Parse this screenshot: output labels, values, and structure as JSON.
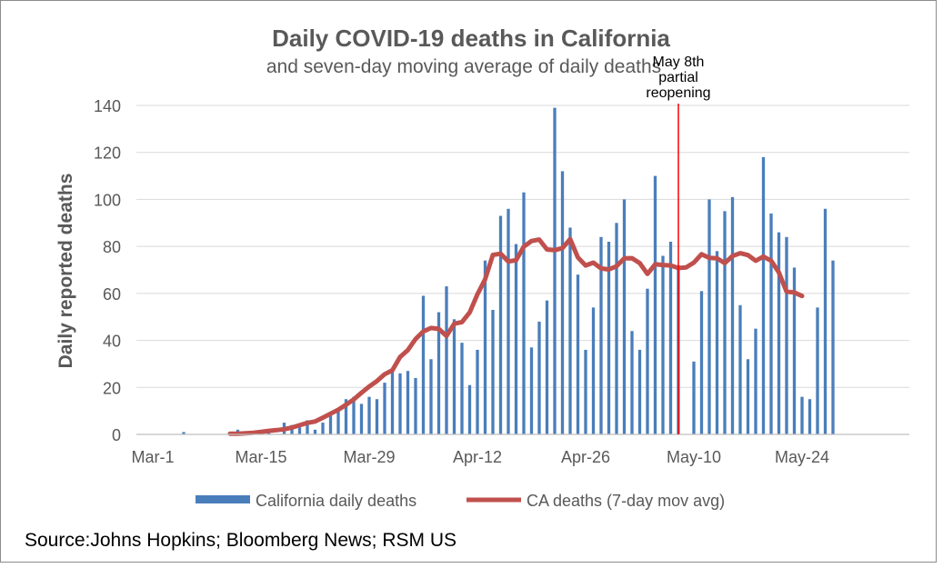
{
  "chart_data": {
    "type": "bar",
    "title": "Daily COVID-19 deaths in California",
    "subtitle": "and seven-day moving average of daily deaths",
    "ylabel": "Daily reported deaths",
    "xlabel": "",
    "ylim": [
      0,
      140
    ],
    "yticks": [
      0,
      20,
      40,
      60,
      80,
      100,
      120,
      140
    ],
    "grid": true,
    "x_start": "Mar-1",
    "xtick_labels": [
      "Mar-1",
      "Mar-15",
      "Mar-29",
      "Apr-12",
      "Apr-26",
      "May-10",
      "May-24"
    ],
    "xtick_index": [
      0,
      14,
      28,
      42,
      56,
      70,
      84
    ],
    "series": [
      {
        "name": "California daily deaths",
        "kind": "bar",
        "color": "#4a7ebb",
        "values": [
          0,
          0,
          0,
          0,
          1,
          0,
          0,
          0,
          0,
          0,
          1,
          2,
          0,
          0,
          1,
          1,
          0,
          5,
          4,
          3,
          6,
          2,
          5,
          9,
          11,
          15,
          16,
          13,
          16,
          15,
          22,
          27,
          26,
          27,
          24,
          59,
          32,
          52,
          63,
          49,
          39,
          21,
          36,
          74,
          53,
          93,
          96,
          81,
          103,
          37,
          48,
          57,
          139,
          112,
          88,
          68,
          36,
          54,
          84,
          82,
          90,
          100,
          44,
          36,
          62,
          110,
          76,
          82,
          72,
          0,
          31,
          61,
          100,
          78,
          95,
          101,
          55,
          32,
          45,
          118,
          94,
          86,
          84,
          71,
          16,
          15,
          54,
          96,
          74
        ]
      },
      {
        "name": "CA deaths (7-day mov avg)",
        "kind": "line",
        "color": "#c0504d",
        "start_index": 10,
        "values": [
          0.3,
          0.3,
          0.5,
          0.7,
          1.1,
          1.5,
          1.8,
          2.2,
          2.9,
          3.9,
          4.9,
          5.5,
          7.1,
          8.8,
          10.5,
          12.6,
          14.9,
          17.7,
          20.4,
          22.7,
          25.6,
          27.3,
          33.0,
          35.9,
          40.6,
          43.8,
          45.3,
          44.9,
          41.9,
          47.1,
          47.8,
          51.9,
          59.6,
          66.0,
          76.4,
          76.9,
          73.6,
          74.1,
          79.9,
          82.3,
          82.9,
          78.7,
          78.4,
          79.3,
          83.1,
          75.3,
          71.9,
          73.1,
          70.6,
          70.2,
          71.6,
          74.9,
          75.0,
          72.9,
          68.3,
          72.4,
          72.1,
          71.9,
          70.8,
          71.1,
          73.1,
          76.7,
          75.1,
          74.9,
          72.9,
          75.9,
          77.1,
          76.3,
          73.9,
          75.7,
          73.9,
          68.9,
          60.7,
          60.4,
          58.9
        ]
      }
    ],
    "annotation": {
      "lines": [
        "May 8th",
        "partial",
        "reopening"
      ],
      "x_label": "May-8",
      "x_index": 68,
      "color": "#ff0000"
    },
    "legend": {
      "placement": "bottom",
      "items": [
        "California daily deaths",
        "CA deaths (7-day mov avg)"
      ]
    }
  },
  "source": "Source:Johns Hopkins; Bloomberg News; RSM US"
}
